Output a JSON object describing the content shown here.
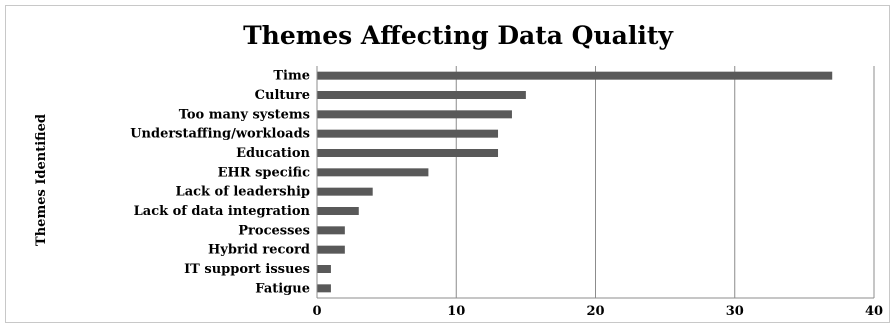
{
  "chart_data": {
    "type": "bar",
    "orientation": "horizontal",
    "title": "Themes Affecting Data Quality",
    "xlabel": "",
    "ylabel": "Themes Identified",
    "categories": [
      "Time",
      "Culture",
      "Too many systems",
      "Understaffing/workloads",
      "Education",
      "EHR specific",
      "Lack of leadership",
      "Lack of data integration",
      "Processes",
      "Hybrid record",
      "IT support issues",
      "Fatigue"
    ],
    "values": [
      37,
      15,
      14,
      13,
      13,
      8,
      4,
      3,
      2,
      2,
      1,
      1
    ],
    "xlim": [
      0,
      40
    ],
    "xticks": [
      0,
      10,
      20,
      30,
      40
    ],
    "grid": "vertical",
    "bar_color": "#595959",
    "grid_color": "#8c8c8c"
  }
}
